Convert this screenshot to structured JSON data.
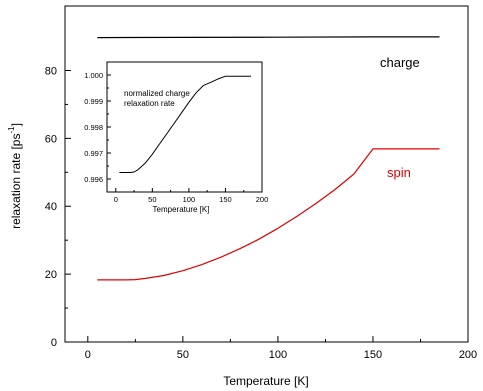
{
  "chart_data": [
    {
      "type": "line",
      "xlabel": "Temperature [K]",
      "ylabel": "relaxation rate [ps",
      "ylabel_sup": "-1",
      "ylabel_close": "]",
      "xlim": [
        -12,
        200
      ],
      "ylim": [
        0,
        99
      ],
      "xticks": [
        0,
        50,
        100,
        150,
        200
      ],
      "yticks": [
        0,
        20,
        40,
        60,
        80
      ],
      "grid": false,
      "series": [
        {
          "name": "charge",
          "color": "#000000",
          "x": [
            5,
            50,
            100,
            150,
            185
          ],
          "y": [
            89.7,
            89.75,
            89.8,
            89.9,
            89.9
          ]
        },
        {
          "name": "spin",
          "color": "#e00000",
          "x": [
            5,
            10,
            20,
            25,
            30,
            40,
            50,
            60,
            70,
            80,
            90,
            100,
            110,
            120,
            130,
            140,
            150,
            160,
            170,
            185
          ],
          "y": [
            18.3,
            18.3,
            18.3,
            18.4,
            18.7,
            19.6,
            21.0,
            22.8,
            25.0,
            27.5,
            30.3,
            33.5,
            37.0,
            40.8,
            44.9,
            49.5,
            56.9,
            56.9,
            56.9,
            56.9
          ]
        }
      ],
      "annotations": [
        {
          "text": "charge",
          "color": "#000000"
        },
        {
          "text": "spin",
          "color": "#e00000"
        }
      ]
    },
    {
      "type": "line",
      "inset": true,
      "xlabel": "Temperature [K]",
      "ylabel": "",
      "xlim": [
        -12,
        200
      ],
      "ylim": [
        0.9955,
        1.0005
      ],
      "xticks": [
        0,
        50,
        100,
        150,
        200
      ],
      "yticks": [
        0.996,
        0.997,
        0.998,
        0.999,
        1.0
      ],
      "ytick_labels": [
        "0.996",
        "0.997",
        "0.998",
        "0.999",
        "1.000"
      ],
      "annotation_lines": [
        "normalized charge",
        "relaxation rate"
      ],
      "series": [
        {
          "color": "#000000",
          "x": [
            5,
            10,
            20,
            25,
            30,
            40,
            50,
            60,
            70,
            80,
            90,
            100,
            110,
            120,
            130,
            140,
            150,
            160,
            170,
            185
          ],
          "y": [
            0.99625,
            0.99625,
            0.99625,
            0.99627,
            0.99635,
            0.9966,
            0.99695,
            0.99735,
            0.99775,
            0.99815,
            0.99855,
            0.99895,
            0.99932,
            0.9996,
            0.99972,
            0.99985,
            0.99995,
            0.99995,
            0.99995,
            0.99995
          ]
        }
      ]
    }
  ]
}
